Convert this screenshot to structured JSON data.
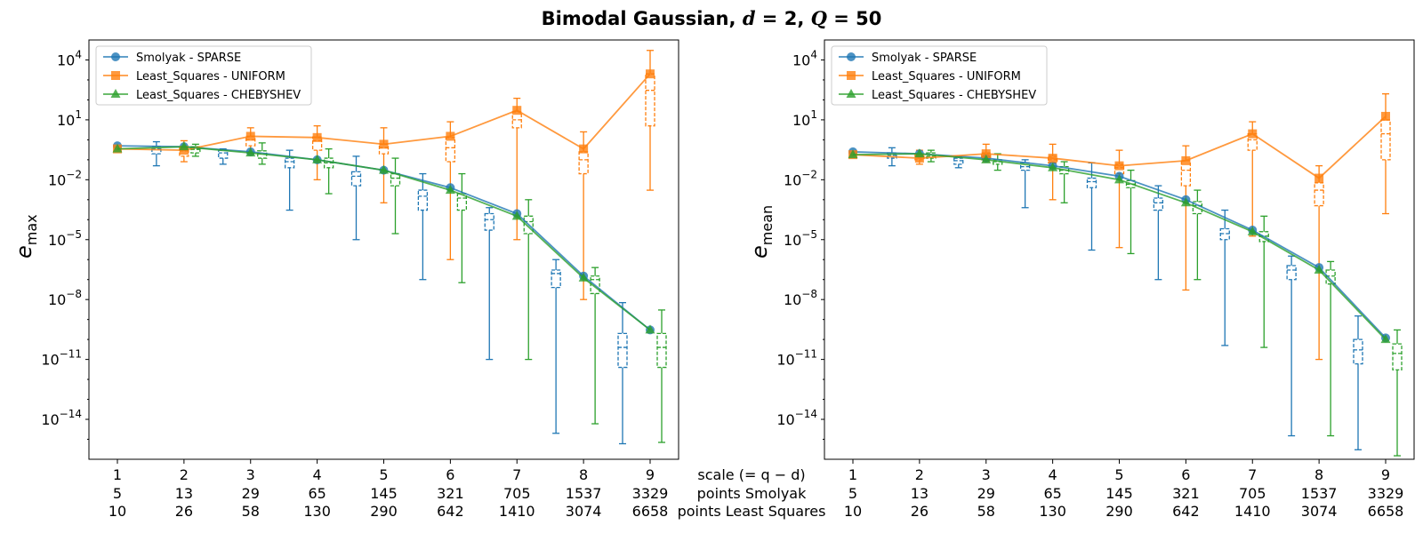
{
  "figure": {
    "title_prefix": "Bimodal Gaussian, ",
    "title_d": "d",
    "title_d_value": " = 2, ",
    "title_q": "Q",
    "title_q_value": " = 50"
  },
  "x_axis": {
    "row_labels": [
      "scale (= q − d)",
      "points Smolyak",
      "points Least Squares"
    ],
    "scale": [
      "1",
      "2",
      "3",
      "4",
      "5",
      "6",
      "7",
      "8",
      "9"
    ],
    "points_smolyak": [
      "5",
      "13",
      "29",
      "65",
      "145",
      "321",
      "705",
      "1537",
      "3329"
    ],
    "points_least_squares": [
      "10",
      "26",
      "58",
      "130",
      "290",
      "642",
      "1410",
      "3074",
      "6658"
    ]
  },
  "chart_data": [
    {
      "type": "line",
      "y_scale": "log",
      "ylabel": "e",
      "ylabel_sub": "max",
      "ylim": [
        1e-16,
        100000.0
      ],
      "y_ticks": [
        {
          "exp": 4
        },
        {
          "exp": 1
        },
        {
          "exp": -2
        },
        {
          "exp": -5
        },
        {
          "exp": -8
        },
        {
          "exp": -11
        },
        {
          "exp": -14
        }
      ],
      "x": [
        1,
        2,
        3,
        4,
        5,
        6,
        7,
        8,
        9
      ],
      "legend_position": "top-left",
      "series": [
        {
          "name": "Smolyak - SPARSE",
          "color": "#1f77b4",
          "marker": "circle",
          "values": [
            0.5,
            0.45,
            0.25,
            0.1,
            0.03,
            0.004,
            0.0002,
            1.5e-07,
            3e-10
          ],
          "boxes": [
            {
              "x": 2,
              "min": 0.05,
              "q1": 0.2,
              "med": 0.35,
              "q3": 0.45,
              "max": 0.8
            },
            {
              "x": 3,
              "min": 0.06,
              "q1": 0.12,
              "med": 0.22,
              "q3": 0.3,
              "max": 0.35
            },
            {
              "x": 4,
              "min": 0.0003,
              "q1": 0.04,
              "med": 0.08,
              "q3": 0.12,
              "max": 0.3
            },
            {
              "x": 5,
              "min": 1e-05,
              "q1": 0.005,
              "med": 0.015,
              "q3": 0.025,
              "max": 0.15
            },
            {
              "x": 6,
              "min": 1e-07,
              "q1": 0.0003,
              "med": 0.0015,
              "q3": 0.003,
              "max": 0.02
            },
            {
              "x": 7,
              "min": 1e-11,
              "q1": 3e-05,
              "med": 0.0001,
              "q3": 0.0002,
              "max": 0.0004
            },
            {
              "x": 8,
              "min": 2e-15,
              "q1": 4e-08,
              "med": 2e-07,
              "q3": 3e-07,
              "max": 1e-06
            },
            {
              "x": 9,
              "min": 6e-16,
              "q1": 4e-12,
              "med": 4e-11,
              "q3": 2e-10,
              "max": 7e-09
            }
          ]
        },
        {
          "name": "Least_Squares - UNIFORM",
          "color": "#ff7f0e",
          "marker": "square",
          "values": [
            0.35,
            0.3,
            1.5,
            1.3,
            0.6,
            1.5,
            30,
            0.35,
            2000
          ],
          "boxes": [
            {
              "x": 2,
              "min": 0.08,
              "q1": 0.15,
              "med": 0.28,
              "q3": 0.4,
              "max": 0.9
            },
            {
              "x": 3,
              "min": 0.2,
              "q1": 0.5,
              "med": 1.0,
              "q3": 1.5,
              "max": 4
            },
            {
              "x": 4,
              "min": 0.01,
              "q1": 0.3,
              "med": 0.9,
              "q3": 1.4,
              "max": 5
            },
            {
              "x": 5,
              "min": 0.0007,
              "q1": 0.2,
              "med": 0.4,
              "q3": 0.6,
              "max": 4
            },
            {
              "x": 6,
              "min": 1e-06,
              "q1": 0.08,
              "med": 0.4,
              "q3": 1.3,
              "max": 8
            },
            {
              "x": 7,
              "min": 1e-05,
              "q1": 4,
              "med": 10,
              "q3": 25,
              "max": 120
            },
            {
              "x": 8,
              "min": 1e-08,
              "q1": 0.02,
              "med": 0.1,
              "q3": 0.25,
              "max": 2.5
            },
            {
              "x": 9,
              "min": 0.003,
              "q1": 5,
              "med": 300,
              "q3": 2000,
              "max": 30000
            }
          ]
        },
        {
          "name": "Least_Squares - CHEBYSHEV",
          "color": "#2ca02c",
          "marker": "triangle",
          "values": [
            0.35,
            0.45,
            0.22,
            0.1,
            0.03,
            0.003,
            0.00015,
            1.2e-07,
            3e-10
          ],
          "boxes": [
            {
              "x": 2,
              "min": 0.15,
              "q1": 0.22,
              "med": 0.33,
              "q3": 0.45,
              "max": 0.6
            },
            {
              "x": 3,
              "min": 0.06,
              "q1": 0.12,
              "med": 0.2,
              "q3": 0.28,
              "max": 0.7
            },
            {
              "x": 4,
              "min": 0.002,
              "q1": 0.04,
              "med": 0.07,
              "q3": 0.12,
              "max": 0.35
            },
            {
              "x": 5,
              "min": 2e-05,
              "q1": 0.005,
              "med": 0.012,
              "q3": 0.02,
              "max": 0.12
            },
            {
              "x": 6,
              "min": 7e-08,
              "q1": 0.0003,
              "med": 0.0012,
              "q3": 0.002,
              "max": 0.02
            },
            {
              "x": 7,
              "min": 1e-11,
              "q1": 2e-05,
              "med": 8e-05,
              "q3": 0.00015,
              "max": 0.001
            },
            {
              "x": 8,
              "min": 6e-15,
              "q1": 2e-08,
              "med": 1e-07,
              "q3": 1.5e-07,
              "max": 4e-07
            },
            {
              "x": 9,
              "min": 7e-16,
              "q1": 4e-12,
              "med": 4e-11,
              "q3": 2e-10,
              "max": 3e-09
            }
          ]
        }
      ]
    },
    {
      "type": "line",
      "y_scale": "log",
      "ylabel": "e",
      "ylabel_sub": "mean",
      "ylim": [
        1e-16,
        100000.0
      ],
      "y_ticks": [
        {
          "exp": 4
        },
        {
          "exp": 1
        },
        {
          "exp": -2
        },
        {
          "exp": -5
        },
        {
          "exp": -8
        },
        {
          "exp": -11
        },
        {
          "exp": -14
        }
      ],
      "x": [
        1,
        2,
        3,
        4,
        5,
        6,
        7,
        8,
        9
      ],
      "legend_position": "top-left",
      "series": [
        {
          "name": "Smolyak - SPARSE",
          "color": "#1f77b4",
          "marker": "circle",
          "values": [
            0.25,
            0.2,
            0.12,
            0.05,
            0.015,
            0.001,
            3e-05,
            4e-07,
            1.2e-10
          ],
          "boxes": [
            {
              "x": 2,
              "min": 0.05,
              "q1": 0.12,
              "med": 0.17,
              "q3": 0.22,
              "max": 0.4
            },
            {
              "x": 3,
              "min": 0.04,
              "q1": 0.06,
              "med": 0.09,
              "q3": 0.12,
              "max": 0.14
            },
            {
              "x": 4,
              "min": 0.0004,
              "q1": 0.03,
              "med": 0.045,
              "q3": 0.07,
              "max": 0.1
            },
            {
              "x": 5,
              "min": 3e-06,
              "q1": 0.004,
              "med": 0.008,
              "q3": 0.012,
              "max": 0.07
            },
            {
              "x": 6,
              "min": 1e-07,
              "q1": 0.0003,
              "med": 0.0007,
              "q3": 0.0012,
              "max": 0.005
            },
            {
              "x": 7,
              "min": 5e-11,
              "q1": 1e-05,
              "med": 2e-05,
              "q3": 3.5e-05,
              "max": 0.0003
            },
            {
              "x": 8,
              "min": 1.5e-15,
              "q1": 1e-07,
              "med": 3e-07,
              "q3": 5e-07,
              "max": 1.5e-06
            },
            {
              "x": 9,
              "min": 3e-16,
              "q1": 6e-12,
              "med": 3e-11,
              "q3": 1e-10,
              "max": 1.5e-09
            }
          ]
        },
        {
          "name": "Least_Squares - UNIFORM",
          "color": "#ff7f0e",
          "marker": "square",
          "values": [
            0.18,
            0.12,
            0.2,
            0.12,
            0.05,
            0.09,
            2,
            0.012,
            15
          ],
          "boxes": [
            {
              "x": 2,
              "min": 0.06,
              "q1": 0.1,
              "med": 0.15,
              "q3": 0.2,
              "max": 0.3
            },
            {
              "x": 3,
              "min": 0.08,
              "q1": 0.1,
              "med": 0.15,
              "q3": 0.22,
              "max": 0.6
            },
            {
              "x": 4,
              "min": 0.001,
              "q1": 0.07,
              "med": 0.1,
              "q3": 0.15,
              "max": 0.6
            },
            {
              "x": 5,
              "min": 4e-06,
              "q1": 0.02,
              "med": 0.04,
              "q3": 0.06,
              "max": 0.3
            },
            {
              "x": 6,
              "min": 3e-08,
              "q1": 0.005,
              "med": 0.03,
              "q3": 0.09,
              "max": 0.5
            },
            {
              "x": 7,
              "min": 1.5e-05,
              "q1": 0.3,
              "med": 1,
              "q3": 2,
              "max": 8
            },
            {
              "x": 8,
              "min": 1e-11,
              "q1": 0.0005,
              "med": 0.003,
              "q3": 0.007,
              "max": 0.05
            },
            {
              "x": 9,
              "min": 0.0002,
              "q1": 0.1,
              "med": 2,
              "q3": 10,
              "max": 200
            }
          ]
        },
        {
          "name": "Least_Squares - CHEBYSHEV",
          "color": "#2ca02c",
          "marker": "triangle",
          "values": [
            0.18,
            0.2,
            0.1,
            0.04,
            0.01,
            0.0007,
            2.5e-05,
            3e-07,
            1e-10
          ],
          "boxes": [
            {
              "x": 2,
              "min": 0.08,
              "q1": 0.12,
              "med": 0.15,
              "q3": 0.22,
              "max": 0.3
            },
            {
              "x": 3,
              "min": 0.03,
              "q1": 0.06,
              "med": 0.08,
              "q3": 0.1,
              "max": 0.2
            },
            {
              "x": 4,
              "min": 0.0007,
              "q1": 0.02,
              "med": 0.03,
              "q3": 0.045,
              "max": 0.08
            },
            {
              "x": 5,
              "min": 2e-06,
              "q1": 0.004,
              "med": 0.006,
              "q3": 0.009,
              "max": 0.03
            },
            {
              "x": 6,
              "min": 1e-07,
              "q1": 0.0002,
              "med": 0.0005,
              "q3": 0.0008,
              "max": 0.003
            },
            {
              "x": 7,
              "min": 4e-11,
              "q1": 8e-06,
              "med": 1.5e-05,
              "q3": 2.5e-05,
              "max": 0.00015
            },
            {
              "x": 8,
              "min": 1.5e-15,
              "q1": 6e-08,
              "med": 1.5e-07,
              "q3": 3e-07,
              "max": 8e-07
            },
            {
              "x": 9,
              "min": 1.5e-16,
              "q1": 3e-12,
              "med": 2e-11,
              "q3": 6e-11,
              "max": 3e-10
            }
          ]
        }
      ]
    }
  ]
}
